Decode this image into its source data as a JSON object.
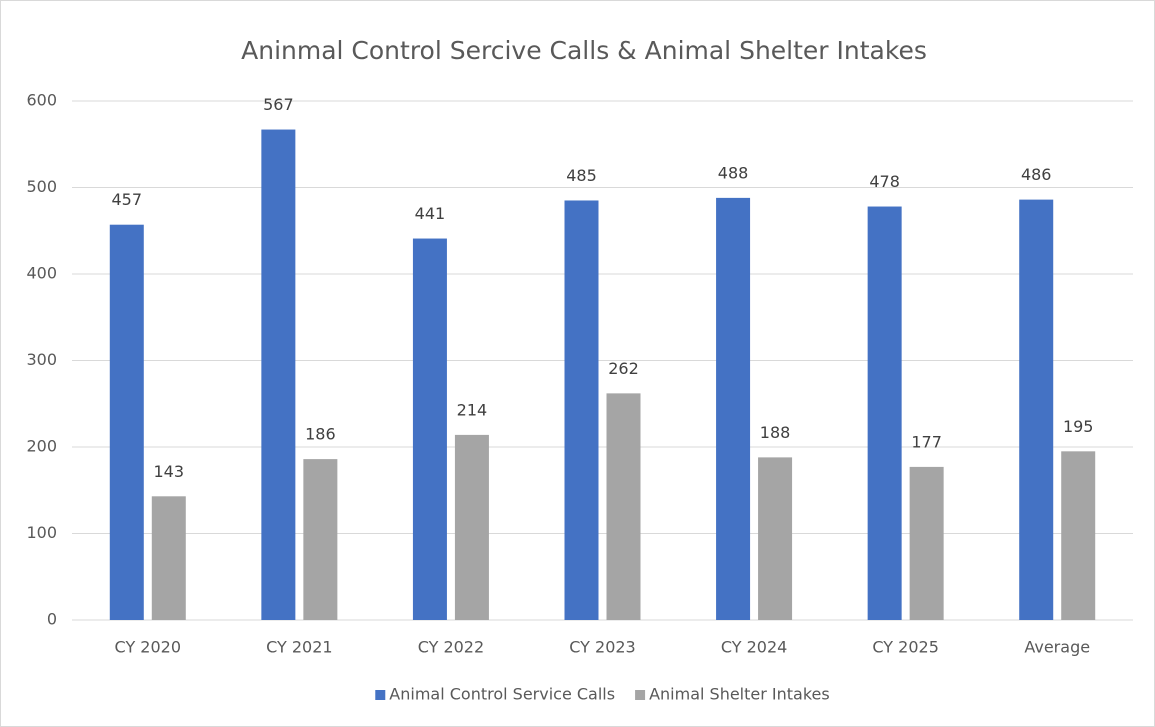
{
  "chart_data": {
    "type": "bar",
    "title": "Aninmal Control Sercive Calls & Animal Shelter Intakes",
    "categories": [
      "CY 2020",
      "CY 2021",
      "CY 2022",
      "CY 2023",
      "CY 2024",
      "CY 2025",
      "Average"
    ],
    "series": [
      {
        "name": "Animal Control Service Calls",
        "color": "#4472c4",
        "values": [
          457,
          567,
          441,
          485,
          488,
          478,
          486
        ]
      },
      {
        "name": "Animal Shelter Intakes",
        "color": "#a5a5a5",
        "values": [
          143,
          186,
          214,
          262,
          188,
          177,
          195
        ]
      }
    ],
    "ylim": [
      0,
      600
    ],
    "yticks": [
      0,
      100,
      200,
      300,
      400,
      500,
      600
    ],
    "grid": true,
    "legend": "bottom",
    "data_labels": true
  }
}
